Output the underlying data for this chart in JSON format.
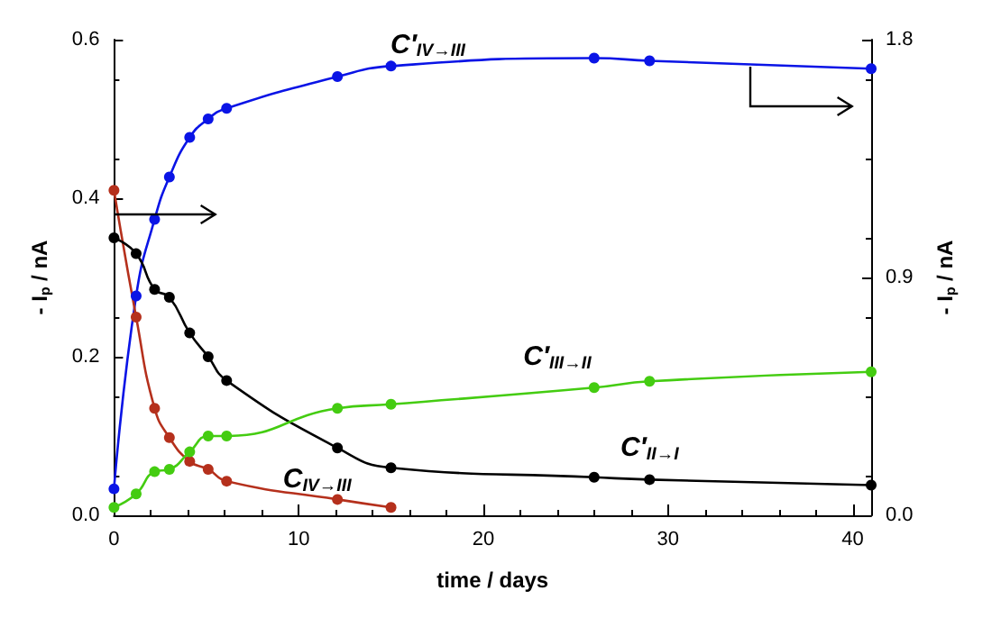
{
  "chart_data": {
    "type": "line",
    "xlabel": "time / days",
    "ylabel": "- I$_{p}$ / nA",
    "y2label": "- I$_{p}$ / nA",
    "x": [
      0,
      1.2,
      2.2,
      3,
      4.1,
      5.1,
      6.1,
      12.1,
      15
    ],
    "xlim": [
      0,
      41
    ],
    "xticks": [
      0,
      10,
      20,
      30,
      40
    ],
    "ylim": [
      0,
      0.6
    ],
    "yticks": [
      {
        "value": 0,
        "label": "0.0"
      },
      {
        "value": 0.2,
        "label": "0.2"
      },
      {
        "value": 0.4,
        "label": "0.4"
      },
      {
        "value": 0.6,
        "label": "0.6"
      }
    ],
    "y2lim": [
      0,
      1.8
    ],
    "y2ticks": [
      {
        "value": 0,
        "label": "0.0"
      },
      {
        "value": 0.9,
        "label": "0.9"
      },
      {
        "value": 1.8,
        "label": "1.8"
      }
    ],
    "grid": false,
    "marker": "circle",
    "line_style": "solid",
    "series": [
      {
        "name": "C′$_{IV→III}$",
        "color": "#0a14e6",
        "axis": "y2",
        "x": [
          0,
          1.2,
          2.2,
          3,
          4.1,
          5.1,
          6.1,
          12.1,
          15,
          26,
          29,
          41
        ],
        "values": [
          0.1,
          0.83,
          1.12,
          1.28,
          1.43,
          1.5,
          1.54,
          1.66,
          1.7,
          1.73,
          1.72,
          1.69
        ]
      },
      {
        "name": "C$_{IV→III}$",
        "color": "#b5301c",
        "values": [
          0.41,
          0.25,
          0.135,
          0.098,
          0.068,
          0.058,
          0.043,
          0.02,
          0.01
        ]
      },
      {
        "name": "C′$_{II→I}$",
        "color": "#000000",
        "x": [
          0,
          1.2,
          2.2,
          3,
          4.1,
          5.1,
          6.1,
          12.1,
          15,
          26,
          29,
          41
        ],
        "values": [
          0.35,
          0.33,
          0.285,
          0.275,
          0.23,
          0.2,
          0.17,
          0.085,
          0.06,
          0.048,
          0.045,
          0.038
        ]
      },
      {
        "name": "C′$_{III→II}$",
        "color": "#44cc11",
        "x": [
          0,
          1.2,
          2.2,
          3,
          4.1,
          5.1,
          6.1,
          12.1,
          15,
          26,
          29,
          41
        ],
        "values": [
          0.01,
          0.027,
          0.055,
          0.058,
          0.08,
          0.1,
          0.1,
          0.135,
          0.14,
          0.161,
          0.169,
          0.181
        ]
      }
    ]
  }
}
